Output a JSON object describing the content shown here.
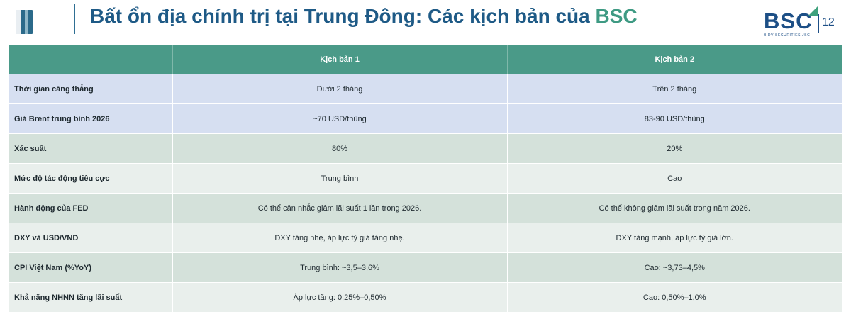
{
  "header": {
    "title_main": "Bất ổn địa chính trị tại Trung Đông: Các kịch bản của",
    "title_accent": "BSC",
    "logo_text": "BSC",
    "logo_subtitle": "BIDV SECURITIES JSC",
    "page_number": "12",
    "colors": {
      "title": "#1e5a86",
      "accent": "#3e9a83",
      "table_header": "#4a9a88"
    }
  },
  "table": {
    "headers": [
      "",
      "Kịch bản 1",
      "Kịch bản 2"
    ],
    "rows": [
      {
        "label": "Thời gian căng thẳng",
        "s1": "Dưới 2 tháng",
        "s2": "Trên 2 tháng"
      },
      {
        "label": "Giá Brent trung bình 2026",
        "s1": "~70 USD/thùng",
        "s2": "83-90 USD/thùng"
      },
      {
        "label": "Xác suất",
        "s1": "80%",
        "s2": "20%"
      },
      {
        "label": "Mức độ tác động tiêu cực",
        "s1": "Trung bình",
        "s2": "Cao"
      },
      {
        "label": "Hành động của FED",
        "s1": "Có thể cân nhắc giảm lãi suất 1 lần trong 2026.",
        "s2": "Có thể không giảm lãi suất trong năm 2026."
      },
      {
        "label": "DXY và USD/VND",
        "s1": "DXY tăng nhẹ, áp lực tỷ giá tăng nhẹ.",
        "s2": "DXY tăng mạnh, áp lực tỷ giá lớn."
      },
      {
        "label": "CPI Việt Nam (%YoY)",
        "s1": "Trung bình: ~3,5–3,6%",
        "s2": "Cao: ~3,73–4,5%"
      },
      {
        "label": "Khả năng NHNN tăng lãi suất",
        "s1": "Áp lực tăng: 0,25%–0,50%",
        "s2": "Cao: 0,50%–1,0%"
      }
    ]
  }
}
